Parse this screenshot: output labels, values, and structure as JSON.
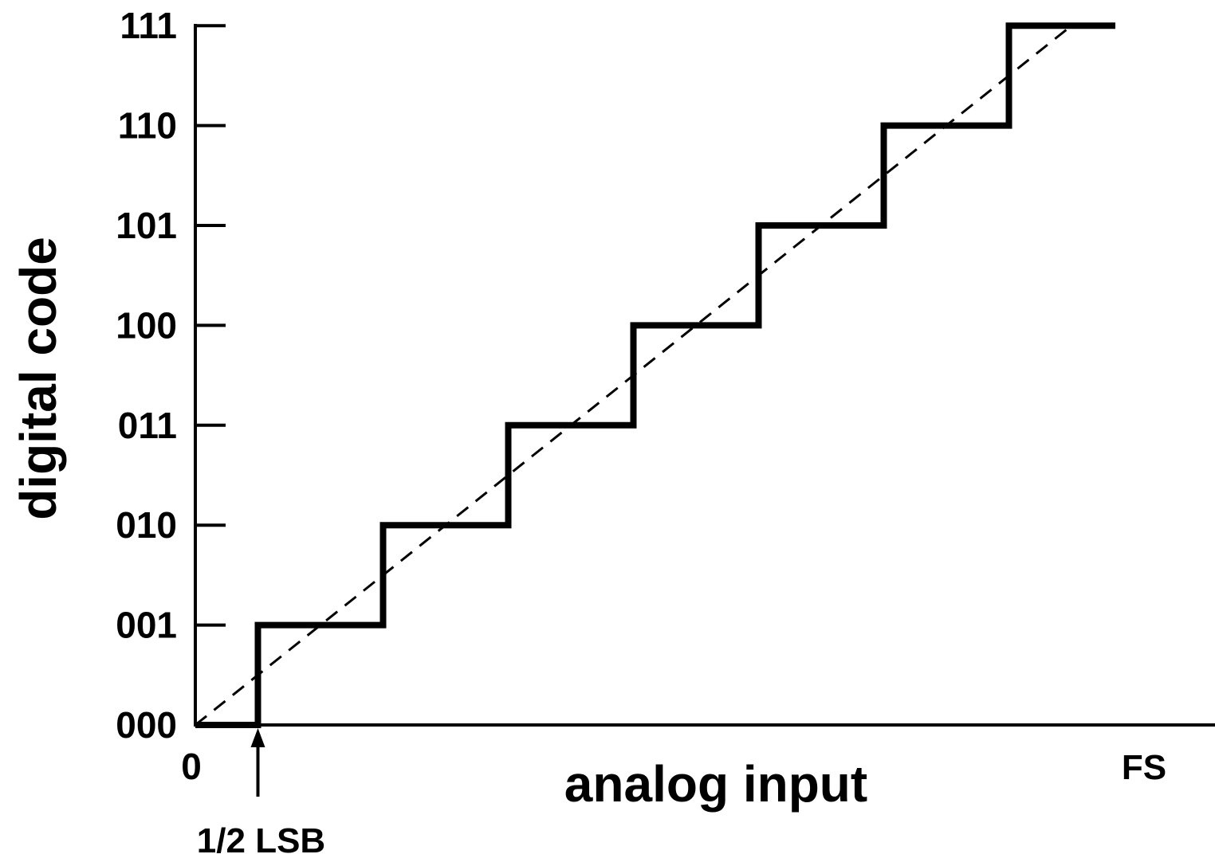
{
  "chart_data": {
    "type": "line",
    "title": "",
    "xlabel": "analog input",
    "ylabel": "digital code",
    "y_categories": [
      "000",
      "001",
      "010",
      "011",
      "100",
      "101",
      "110",
      "111"
    ],
    "x_tick_labels": {
      "origin": "0",
      "full_scale": "FS"
    },
    "xlim": [
      0,
      7.5
    ],
    "ylim": [
      0,
      7
    ],
    "series": [
      {
        "style": "solid-step",
        "x": [
          0,
          0.5,
          0.5,
          1.5,
          1.5,
          2.5,
          2.5,
          3.5,
          3.5,
          4.5,
          4.5,
          5.5,
          5.5,
          6.5,
          6.5,
          7.35
        ],
        "y": [
          0,
          0,
          1,
          1,
          2,
          2,
          3,
          3,
          4,
          4,
          5,
          5,
          6,
          6,
          7,
          7
        ]
      },
      {
        "style": "dashed-ideal",
        "x": [
          0,
          7.0
        ],
        "y": [
          0,
          7
        ]
      }
    ],
    "annotations": [
      {
        "text": "1/2 LSB",
        "x": 0.5,
        "arrow": "up"
      }
    ],
    "grid": false,
    "legend": "none"
  },
  "colors": {
    "line": "#000000",
    "background": "#ffffff"
  }
}
